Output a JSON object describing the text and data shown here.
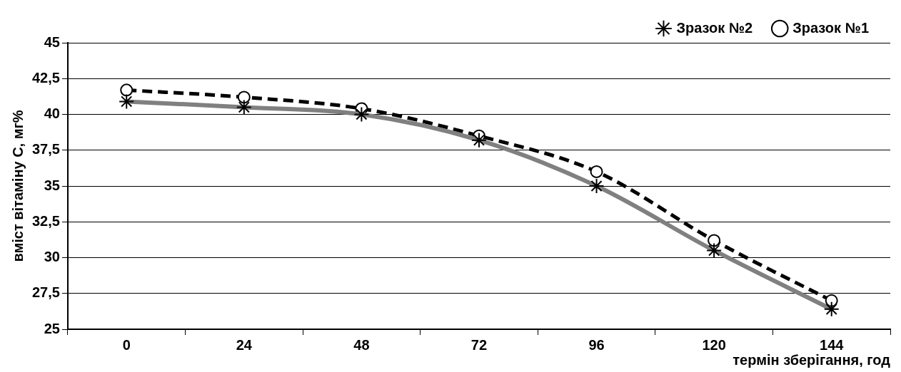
{
  "chart_data": {
    "type": "line",
    "xlabel": "термін зберігання, год",
    "ylabel": "вміст вітаміну С, мг%",
    "categories": [
      "0",
      "24",
      "48",
      "72",
      "96",
      "120",
      "144"
    ],
    "series": [
      {
        "name": "Зразок №1",
        "color": "#000000",
        "marker": "circle",
        "line_style": "dashed",
        "values": [
          41.7,
          41.2,
          40.4,
          38.5,
          36.0,
          31.2,
          27.0
        ]
      },
      {
        "name": "Зразок №2",
        "color": "#808080",
        "marker": "cross",
        "line_style": "solid",
        "values": [
          40.9,
          40.5,
          40.0,
          38.2,
          35.0,
          30.5,
          26.4
        ]
      }
    ],
    "ylim": [
      25,
      45
    ],
    "yticks": [
      25,
      {
        "value": 27.5,
        "label": "27,5"
      },
      30,
      {
        "value": 32.5,
        "label": "32,5"
      },
      35,
      {
        "value": 37.5,
        "label": "37,5"
      },
      40,
      {
        "value": 42.5,
        "label": "42,5"
      },
      45
    ],
    "grid": "y",
    "legend": "top right"
  }
}
